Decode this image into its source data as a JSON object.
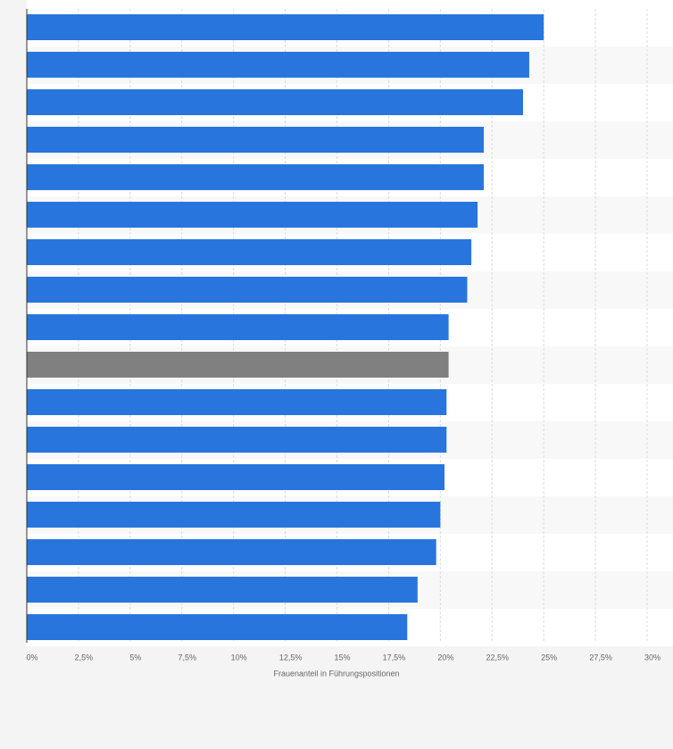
{
  "chart_data": {
    "type": "hbar",
    "x_label": "Frauenanteil in Führungspositionen",
    "categories": [
      null,
      null,
      null,
      null,
      null,
      null,
      null,
      null,
      null,
      null,
      null,
      null,
      null,
      null,
      null,
      null,
      null
    ],
    "values": [
      25.0,
      24.3,
      24.0,
      22.1,
      22.1,
      21.8,
      21.5,
      21.3,
      20.4,
      20.4,
      20.3,
      20.3,
      20.2,
      20.0,
      19.8,
      18.9,
      18.4
    ],
    "colors": [
      "#2876dd",
      "#2876dd",
      "#2876dd",
      "#2876dd",
      "#2876dd",
      "#2876dd",
      "#2876dd",
      "#2876dd",
      "#2876dd",
      "#808080",
      "#2876dd",
      "#2876dd",
      "#2876dd",
      "#2876dd",
      "#2876dd",
      "#2876dd",
      "#2876dd"
    ],
    "xlim": [
      0,
      30
    ],
    "xticks": [
      {
        "value": 0,
        "label": "0%"
      },
      {
        "value": 2.5,
        "label": "2,5%"
      },
      {
        "value": 5,
        "label": "5%"
      },
      {
        "value": 7.5,
        "label": "7,5%"
      },
      {
        "value": 10,
        "label": "10%"
      },
      {
        "value": 12.5,
        "label": "12,5%"
      },
      {
        "value": 15,
        "label": "15%"
      },
      {
        "value": 17.5,
        "label": "17,5%"
      },
      {
        "value": 20,
        "label": "20%"
      },
      {
        "value": 22.5,
        "label": "22,5%"
      },
      {
        "value": 25,
        "label": "25%"
      },
      {
        "value": 27.5,
        "label": "27,5%"
      },
      {
        "value": 30,
        "label": "30%"
      }
    ],
    "grid": true
  }
}
